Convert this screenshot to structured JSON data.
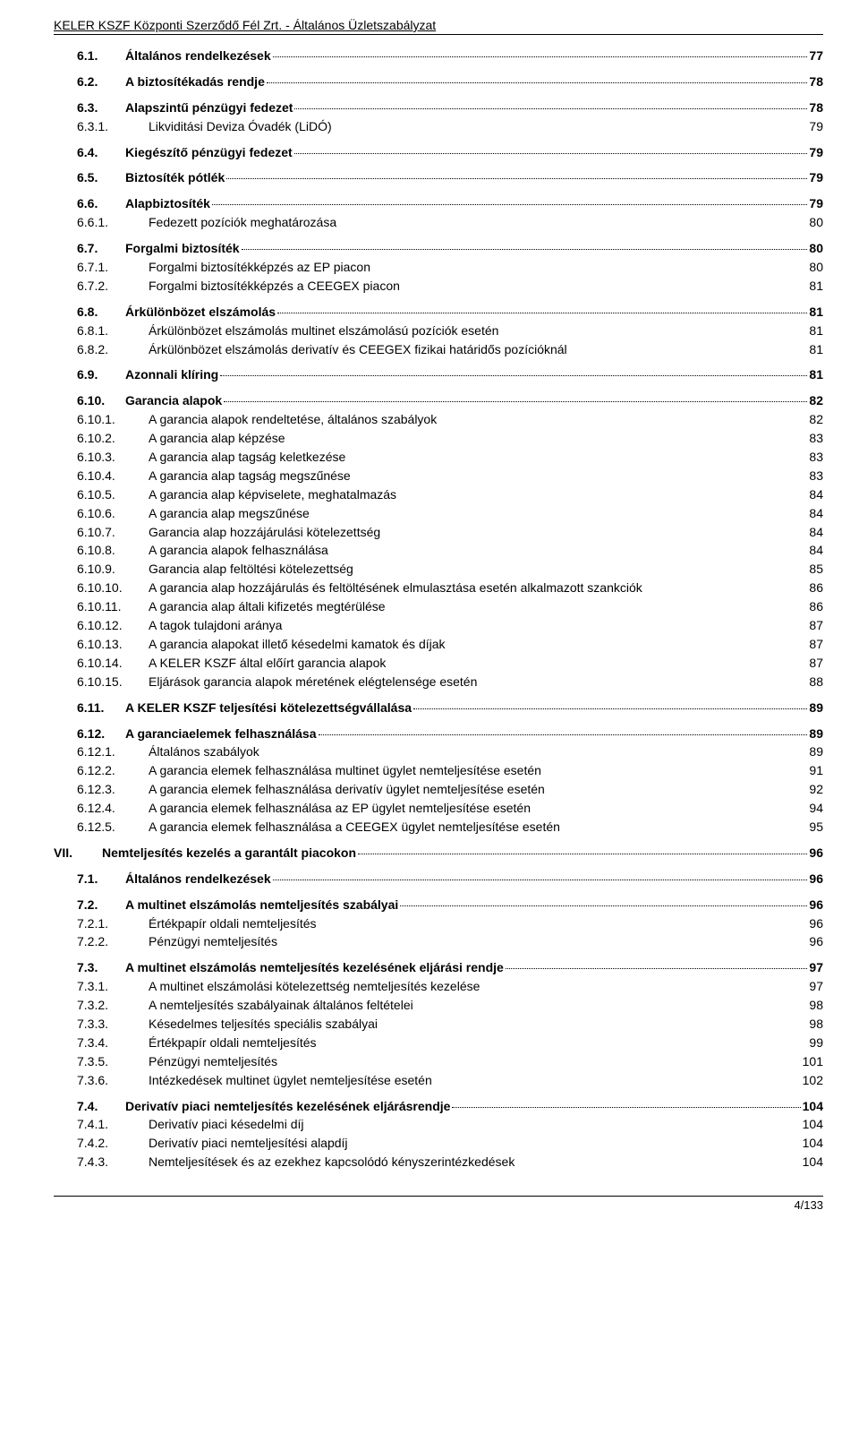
{
  "header": "KELER KSZF Központi Szerződő Fél Zrt. - Általános Üzletszabályzat",
  "footer": "4/133",
  "toc": [
    {
      "level": 2,
      "bold": true,
      "num": "6.1.",
      "title": "Általános rendelkezések",
      "page": "77",
      "dots": true,
      "gapBefore": false
    },
    {
      "level": 2,
      "bold": true,
      "num": "6.2.",
      "title": "A biztosítékadás rendje",
      "page": "78",
      "dots": true,
      "gapBefore": true
    },
    {
      "level": 2,
      "bold": true,
      "num": "6.3.",
      "title": "Alapszintű pénzügyi fedezet",
      "page": "78",
      "dots": true,
      "gapBefore": true
    },
    {
      "level": 3,
      "bold": false,
      "num": "6.3.1.",
      "title": "Likviditási Deviza Óvadék (LiDÓ)",
      "page": "79",
      "dots": false,
      "gapBefore": false
    },
    {
      "level": 2,
      "bold": true,
      "num": "6.4.",
      "title": "Kiegészítő pénzügyi fedezet",
      "page": "79",
      "dots": true,
      "gapBefore": true
    },
    {
      "level": 2,
      "bold": true,
      "num": "6.5.",
      "title": "Biztosíték pótlék",
      "page": "79",
      "dots": true,
      "gapBefore": true
    },
    {
      "level": 2,
      "bold": true,
      "num": "6.6.",
      "title": "Alapbiztosíték",
      "page": "79",
      "dots": true,
      "gapBefore": true
    },
    {
      "level": 3,
      "bold": false,
      "num": "6.6.1.",
      "title": "Fedezett pozíciók meghatározása",
      "page": "80",
      "dots": false,
      "gapBefore": false
    },
    {
      "level": 2,
      "bold": true,
      "num": "6.7.",
      "title": "Forgalmi biztosíték",
      "page": "80",
      "dots": true,
      "gapBefore": true
    },
    {
      "level": 3,
      "bold": false,
      "num": "6.7.1.",
      "title": "Forgalmi biztosítékképzés az EP piacon",
      "page": "80",
      "dots": false,
      "gapBefore": false
    },
    {
      "level": 3,
      "bold": false,
      "num": "6.7.2.",
      "title": "Forgalmi biztosítékképzés a CEEGEX piacon",
      "page": "81",
      "dots": false,
      "gapBefore": false
    },
    {
      "level": 2,
      "bold": true,
      "num": "6.8.",
      "title": "Árkülönbözet elszámolás",
      "page": "81",
      "dots": true,
      "gapBefore": true
    },
    {
      "level": 3,
      "bold": false,
      "num": "6.8.1.",
      "title": "Árkülönbözet elszámolás multinet elszámolású pozíciók esetén",
      "page": "81",
      "dots": false,
      "gapBefore": false
    },
    {
      "level": 3,
      "bold": false,
      "num": "6.8.2.",
      "title": "Árkülönbözet elszámolás derivatív és CEEGEX fizikai határidős pozícióknál",
      "page": "81",
      "dots": false,
      "gapBefore": false
    },
    {
      "level": 2,
      "bold": true,
      "num": "6.9.",
      "title": "Azonnali klíring",
      "page": "81",
      "dots": true,
      "gapBefore": true
    },
    {
      "level": 2,
      "bold": true,
      "num": "6.10.",
      "title": "Garancia alapok",
      "page": "82",
      "dots": true,
      "gapBefore": true
    },
    {
      "level": 3,
      "bold": false,
      "num": "6.10.1.",
      "title": "A garancia alapok rendeltetése, általános szabályok",
      "page": "82",
      "dots": false,
      "gapBefore": false
    },
    {
      "level": 3,
      "bold": false,
      "num": "6.10.2.",
      "title": "A garancia alap képzése",
      "page": "83",
      "dots": false,
      "gapBefore": false
    },
    {
      "level": 3,
      "bold": false,
      "num": "6.10.3.",
      "title": "A garancia alap tagság keletkezése",
      "page": "83",
      "dots": false,
      "gapBefore": false
    },
    {
      "level": 3,
      "bold": false,
      "num": "6.10.4.",
      "title": "A garancia alap tagság megszűnése",
      "page": "83",
      "dots": false,
      "gapBefore": false
    },
    {
      "level": 3,
      "bold": false,
      "num": "6.10.5.",
      "title": "A garancia alap képviselete, meghatalmazás",
      "page": "84",
      "dots": false,
      "gapBefore": false
    },
    {
      "level": 3,
      "bold": false,
      "num": "6.10.6.",
      "title": "A garancia alap megszűnése",
      "page": "84",
      "dots": false,
      "gapBefore": false
    },
    {
      "level": 3,
      "bold": false,
      "num": "6.10.7.",
      "title": "Garancia alap hozzájárulási kötelezettség",
      "page": "84",
      "dots": false,
      "gapBefore": false
    },
    {
      "level": 3,
      "bold": false,
      "num": "6.10.8.",
      "title": "A garancia alapok felhasználása",
      "page": "84",
      "dots": false,
      "gapBefore": false
    },
    {
      "level": 3,
      "bold": false,
      "num": "6.10.9.",
      "title": "Garancia alap feltöltési kötelezettség",
      "page": "85",
      "dots": false,
      "gapBefore": false
    },
    {
      "level": 3,
      "bold": false,
      "num": "6.10.10.",
      "title": "A garancia alap hozzájárulás és feltöltésének elmulasztása esetén alkalmazott szankciók",
      "page": "86",
      "dots": false,
      "gapBefore": false
    },
    {
      "level": 3,
      "bold": false,
      "num": "6.10.11.",
      "title": "A garancia alap általi kifizetés megtérülése",
      "page": "86",
      "dots": false,
      "gapBefore": false
    },
    {
      "level": 3,
      "bold": false,
      "num": "6.10.12.",
      "title": "A tagok tulajdoni aránya",
      "page": "87",
      "dots": false,
      "gapBefore": false
    },
    {
      "level": 3,
      "bold": false,
      "num": "6.10.13.",
      "title": "A garancia alapokat illető késedelmi kamatok és díjak",
      "page": "87",
      "dots": false,
      "gapBefore": false
    },
    {
      "level": 3,
      "bold": false,
      "num": "6.10.14.",
      "title": "A KELER KSZF által előírt garancia alapok",
      "page": "87",
      "dots": false,
      "gapBefore": false
    },
    {
      "level": 3,
      "bold": false,
      "num": "6.10.15.",
      "title": "Eljárások garancia alapok méretének elégtelensége esetén",
      "page": "88",
      "dots": false,
      "gapBefore": false
    },
    {
      "level": 2,
      "bold": true,
      "num": "6.11.",
      "title": "A KELER KSZF teljesítési kötelezettségvállalása",
      "page": "89",
      "dots": true,
      "gapBefore": true
    },
    {
      "level": 2,
      "bold": true,
      "num": "6.12.",
      "title": "A garanciaelemek felhasználása",
      "page": "89",
      "dots": true,
      "gapBefore": true
    },
    {
      "level": 3,
      "bold": false,
      "num": "6.12.1.",
      "title": "Általános szabályok",
      "page": "89",
      "dots": false,
      "gapBefore": false
    },
    {
      "level": 3,
      "bold": false,
      "num": "6.12.2.",
      "title": "A garancia elemek felhasználása multinet ügylet nemteljesítése esetén",
      "page": "91",
      "dots": false,
      "gapBefore": false
    },
    {
      "level": 3,
      "bold": false,
      "num": "6.12.3.",
      "title": "A garancia elemek felhasználása derivatív ügylet nemteljesítése esetén",
      "page": "92",
      "dots": false,
      "gapBefore": false
    },
    {
      "level": 3,
      "bold": false,
      "num": "6.12.4.",
      "title": "A garancia elemek felhasználása az EP ügylet nemteljesítése esetén",
      "page": "94",
      "dots": false,
      "gapBefore": false
    },
    {
      "level": 3,
      "bold": false,
      "num": "6.12.5.",
      "title": "A garancia elemek felhasználása a CEEGEX ügylet nemteljesítése esetén",
      "page": "95",
      "dots": false,
      "gapBefore": false
    },
    {
      "level": 1,
      "bold": true,
      "num": "VII.",
      "title": "Nemteljesítés kezelés a garantált piacokon",
      "page": "96",
      "dots": true,
      "gapBefore": true
    },
    {
      "level": 2,
      "bold": true,
      "num": "7.1.",
      "title": "Általános rendelkezések",
      "page": "96",
      "dots": true,
      "gapBefore": true
    },
    {
      "level": 2,
      "bold": true,
      "num": "7.2.",
      "title": "A multinet elszámolás nemteljesítés szabályai",
      "page": "96",
      "dots": true,
      "gapBefore": true
    },
    {
      "level": 3,
      "bold": false,
      "num": "7.2.1.",
      "title": "Értékpapír oldali nemteljesítés",
      "page": "96",
      "dots": false,
      "gapBefore": false
    },
    {
      "level": 3,
      "bold": false,
      "num": "7.2.2.",
      "title": "Pénzügyi nemteljesítés",
      "page": "96",
      "dots": false,
      "gapBefore": false
    },
    {
      "level": 2,
      "bold": true,
      "num": "7.3.",
      "title": "A multinet elszámolás nemteljesítés kezelésének eljárási rendje",
      "page": "97",
      "dots": true,
      "gapBefore": true
    },
    {
      "level": 3,
      "bold": false,
      "num": "7.3.1.",
      "title": "A multinet elszámolási kötelezettség nemteljesítés kezelése",
      "page": "97",
      "dots": false,
      "gapBefore": false
    },
    {
      "level": 3,
      "bold": false,
      "num": "7.3.2.",
      "title": "A nemteljesítés szabályainak általános feltételei",
      "page": "98",
      "dots": false,
      "gapBefore": false
    },
    {
      "level": 3,
      "bold": false,
      "num": "7.3.3.",
      "title": "Késedelmes teljesítés speciális szabályai",
      "page": "98",
      "dots": false,
      "gapBefore": false
    },
    {
      "level": 3,
      "bold": false,
      "num": "7.3.4.",
      "title": "Értékpapír oldali nemteljesítés",
      "page": "99",
      "dots": false,
      "gapBefore": false
    },
    {
      "level": 3,
      "bold": false,
      "num": "7.3.5.",
      "title": "Pénzügyi nemteljesítés",
      "page": "101",
      "dots": false,
      "gapBefore": false
    },
    {
      "level": 3,
      "bold": false,
      "num": "7.3.6.",
      "title": "Intézkedések multinet ügylet nemteljesítése esetén",
      "page": "102",
      "dots": false,
      "gapBefore": false
    },
    {
      "level": 2,
      "bold": true,
      "num": "7.4.",
      "title": "Derivatív piaci nemteljesítés kezelésének eljárásrendje",
      "page": "104",
      "dots": true,
      "gapBefore": true
    },
    {
      "level": 3,
      "bold": false,
      "num": "7.4.1.",
      "title": "Derivatív piaci késedelmi díj",
      "page": "104",
      "dots": false,
      "gapBefore": false
    },
    {
      "level": 3,
      "bold": false,
      "num": "7.4.2.",
      "title": "Derivatív piaci nemteljesítési alapdíj",
      "page": "104",
      "dots": false,
      "gapBefore": false
    },
    {
      "level": 3,
      "bold": false,
      "num": "7.4.3.",
      "title": "Nemteljesítések és az ezekhez kapcsolódó kényszerintézkedések",
      "page": "104",
      "dots": false,
      "gapBefore": false
    }
  ]
}
